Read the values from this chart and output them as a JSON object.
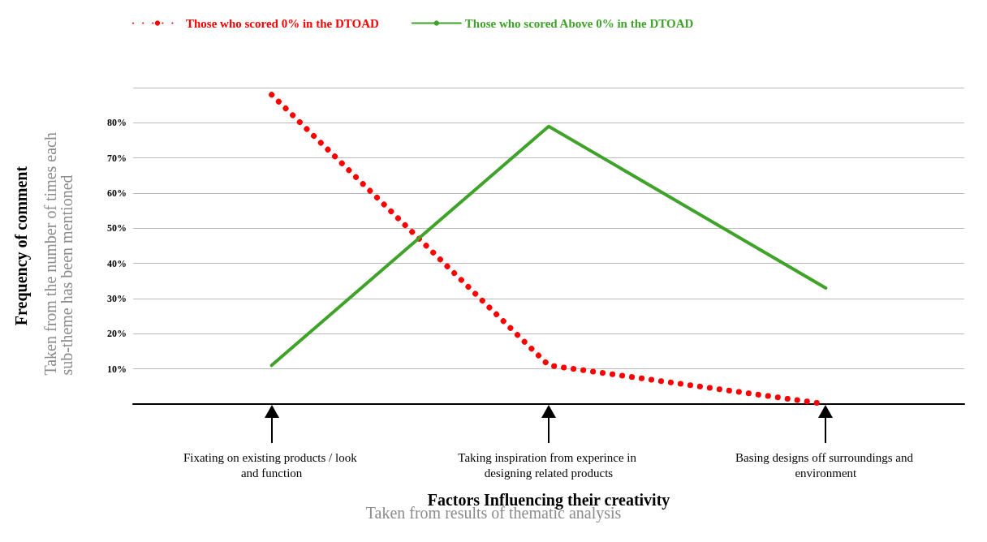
{
  "chart_data": {
    "type": "line",
    "xlabel": "Factors Influencing their creativity",
    "ylabel": "Frequency of comment",
    "annotations": [
      "Taken from the number of times each sub-theme has been mentioned",
      "Taken from results of thematic analysis"
    ],
    "categories": [
      "Fixating on existing products / look and function",
      "Taking inspiration from experince in designing related products",
      "Basing designs off surroundings and environment"
    ],
    "series": [
      {
        "name": "Those who scored 0% in the DTOAD",
        "color": "#ff0000",
        "values": [
          88,
          11,
          0
        ],
        "line_style": "dotted"
      },
      {
        "name": "Those who scored Above 0% in the DTOAD",
        "color": "#3fa32a",
        "values": [
          11,
          79,
          33
        ],
        "line_style": "solid"
      }
    ],
    "ylim": [
      0,
      90
    ],
    "yticks": [
      {
        "value": 10,
        "label": "10%"
      },
      {
        "value": 20,
        "label": "20%"
      },
      {
        "value": 30,
        "label": "30%"
      },
      {
        "value": 40,
        "label": "40%"
      },
      {
        "value": 50,
        "label": "50%"
      },
      {
        "value": 60,
        "label": "60%"
      },
      {
        "value": 70,
        "label": "70%"
      },
      {
        "value": 80,
        "label": "80%"
      }
    ],
    "grid": "y",
    "legend": "top left",
    "marker": "none"
  }
}
